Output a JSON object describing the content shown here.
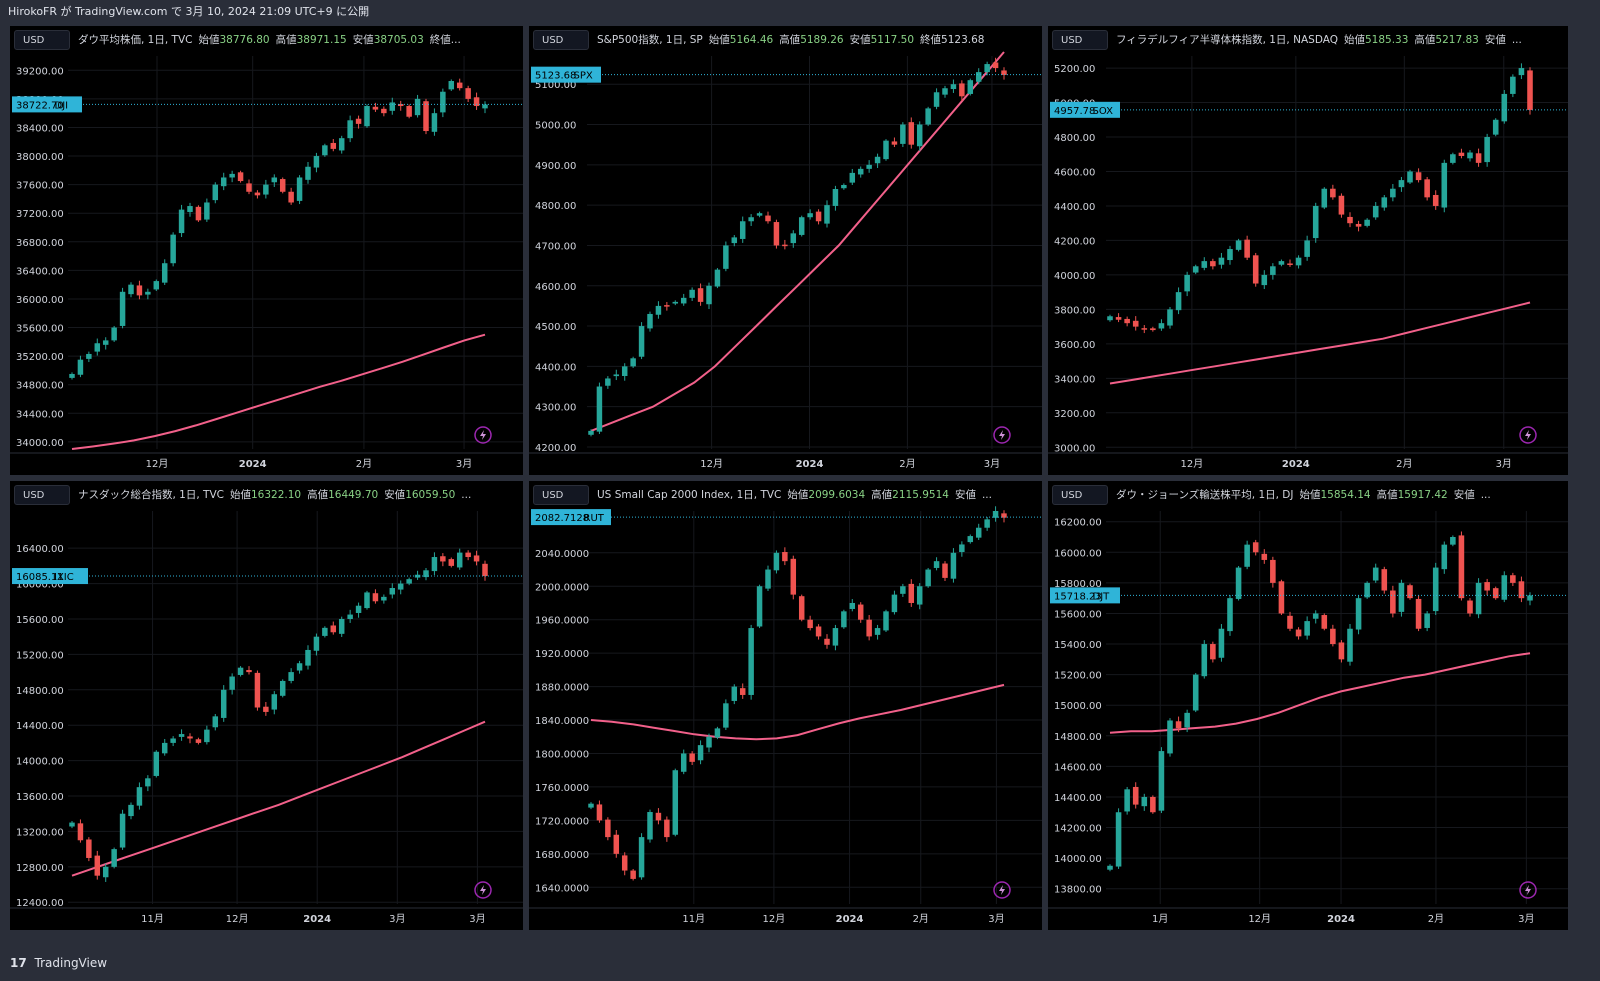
{
  "header": {
    "text": "HirokoFR が TradingView.com で 3月 10, 2024 21:09 UTC+9 に公開"
  },
  "footer": {
    "logo": "17",
    "brand": "TradingView"
  },
  "colors": {
    "up": "#26a69a",
    "down": "#ef5350",
    "ma": "#f2608a",
    "tag": "#2fb4d8",
    "bg": "#000000",
    "frame": "#2a2e39"
  },
  "panels": [
    {
      "currency": "USD",
      "legend": {
        "name": "ダウ平均株価, 1日, TVC",
        "o_label": "始値",
        "o": "38776.80",
        "h_label": "高値",
        "h": "38971.15",
        "l_label": "安値",
        "l": "38705.03",
        "tail": "終値..."
      },
      "last": {
        "value": "38722.70",
        "symbol": "DJI"
      },
      "chart_data": {
        "type": "candlestick",
        "ylim": [
          33900,
          39400
        ],
        "y_ticks": [
          "39200.00",
          "38800.00",
          "38400.00",
          "38000.00",
          "37600.00",
          "37200.00",
          "36800.00",
          "36400.00",
          "36000.00",
          "35600.00",
          "35200.00",
          "34800.00",
          "34400.00",
          "34000.00"
        ],
        "x_ticks": [
          {
            "label": "12月",
            "pos": 0.2
          },
          {
            "label": "2024",
            "pos": 0.415,
            "major": true
          },
          {
            "label": "2月",
            "pos": 0.665
          },
          {
            "label": "3月",
            "pos": 0.89
          }
        ],
        "closes": [
          34950,
          35150,
          35230,
          35380,
          35420,
          35600,
          36100,
          36200,
          36050,
          36100,
          36250,
          36500,
          36900,
          37250,
          37300,
          37100,
          37350,
          37600,
          37700,
          37750,
          37650,
          37500,
          37450,
          37600,
          37700,
          37500,
          37350,
          37700,
          37850,
          38000,
          38150,
          38100,
          38250,
          38500,
          38450,
          38700,
          38650,
          38600,
          38750,
          38700,
          38550,
          38800,
          38350,
          38600,
          38900,
          39050,
          38950,
          38800,
          38700,
          38722
        ],
        "ma": [
          33900,
          33935,
          33975,
          34020,
          34080,
          34150,
          34230,
          34320,
          34410,
          34500,
          34590,
          34680,
          34770,
          34850,
          34940,
          35030,
          35120,
          35220,
          35320,
          35420,
          35500
        ]
      }
    },
    {
      "currency": "USD",
      "legend": {
        "name": "S&P500指数, 1日, SP",
        "o_label": "始値",
        "o": "5164.46",
        "h_label": "高値",
        "h": "5189.26",
        "l_label": "安値",
        "l": "5117.50",
        "tail": "終値5123.68"
      },
      "last": {
        "value": "5123.68",
        "symbol": "SPX"
      },
      "chart_data": {
        "type": "candlestick",
        "ylim": [
          4195,
          5170
        ],
        "y_ticks": [
          "5100.00",
          "5000.00",
          "4900.00",
          "4800.00",
          "4700.00",
          "4600.00",
          "4500.00",
          "4400.00",
          "4300.00",
          "4200.00"
        ],
        "x_ticks": [
          {
            "label": "12月",
            "pos": 0.28
          },
          {
            "label": "2024",
            "pos": 0.5,
            "major": true
          },
          {
            "label": "2月",
            "pos": 0.72
          },
          {
            "label": "3月",
            "pos": 0.91
          }
        ],
        "closes": [
          4240,
          4350,
          4370,
          4380,
          4400,
          4420,
          4500,
          4530,
          4550,
          4550,
          4560,
          4570,
          4590,
          4560,
          4600,
          4640,
          4700,
          4720,
          4760,
          4770,
          4780,
          4760,
          4700,
          4700,
          4730,
          4770,
          4780,
          4760,
          4800,
          4840,
          4850,
          4880,
          4890,
          4900,
          4920,
          4960,
          4950,
          5000,
          4950,
          5000,
          5040,
          5080,
          5090,
          5100,
          5070,
          5110,
          5130,
          5150,
          5140,
          5123
        ],
        "ma": [
          4240,
          4260,
          4280,
          4300,
          4330,
          4360,
          4400,
          4450,
          4500,
          4550,
          4600,
          4650,
          4700,
          4760,
          4820,
          4880,
          4940,
          5000,
          5060,
          5120,
          5180
        ]
      }
    },
    {
      "currency": "USD",
      "legend": {
        "name": "フィラデルフィア半導体株指数, 1日, NASDAQ",
        "o_label": "始値",
        "o": "5185.33",
        "h_label": "高値",
        "h": "5217.83",
        "l_label": "安値",
        "tail": "..."
      },
      "last": {
        "value": "4957.78",
        "symbol": "SOX"
      },
      "chart_data": {
        "type": "candlestick",
        "ylim": [
          2990,
          5270
        ],
        "y_ticks": [
          "5200.00",
          "5000.00",
          "4800.00",
          "4600.00",
          "4400.00",
          "4200.00",
          "4000.00",
          "3800.00",
          "3600.00",
          "3400.00",
          "3200.00",
          "3000.00"
        ],
        "x_ticks": [
          {
            "label": "12月",
            "pos": 0.19
          },
          {
            "label": "2024",
            "pos": 0.42,
            "major": true
          },
          {
            "label": "2月",
            "pos": 0.66
          },
          {
            "label": "3月",
            "pos": 0.88
          }
        ],
        "closes": [
          3760,
          3740,
          3720,
          3700,
          3690,
          3680,
          3720,
          3800,
          3900,
          4000,
          4050,
          4080,
          4050,
          4100,
          4150,
          4200,
          4100,
          3950,
          4000,
          4050,
          4080,
          4060,
          4100,
          4200,
          4400,
          4500,
          4450,
          4350,
          4300,
          4280,
          4320,
          4400,
          4450,
          4500,
          4550,
          4600,
          4550,
          4450,
          4400,
          4650,
          4700,
          4690,
          4710,
          4650,
          4800,
          4900,
          5050,
          5150,
          5200,
          4957
        ],
        "ma": [
          3370,
          3390,
          3410,
          3430,
          3450,
          3470,
          3490,
          3510,
          3530,
          3550,
          3570,
          3590,
          3610,
          3630,
          3660,
          3690,
          3720,
          3750,
          3780,
          3810,
          3840
        ]
      }
    },
    {
      "currency": "USD",
      "legend": {
        "name": "ナスダック総合指数, 1日, TVC",
        "o_label": "始値",
        "o": "16322.10",
        "h_label": "高値",
        "h": "16449.70",
        "l_label": "安値",
        "l": "16059.50",
        "tail": "..."
      },
      "last": {
        "value": "16085.11",
        "symbol": "IXIC"
      },
      "chart_data": {
        "type": "candlestick",
        "ylim": [
          12380,
          16820
        ],
        "y_ticks": [
          "16400.00",
          "16000.00",
          "15600.00",
          "15200.00",
          "14800.00",
          "14400.00",
          "14000.00",
          "13600.00",
          "13200.00",
          "12800.00",
          "12400.00"
        ],
        "x_ticks": [
          {
            "label": "11月",
            "pos": 0.19
          },
          {
            "label": "12月",
            "pos": 0.38
          },
          {
            "label": "2024",
            "pos": 0.56,
            "major": true
          },
          {
            "label": "3月",
            "pos": 0.74
          },
          {
            "label": "3月",
            "pos": 0.92
          }
        ],
        "closes": [
          13300,
          13100,
          12900,
          12700,
          12800,
          13000,
          13400,
          13500,
          13700,
          13800,
          14100,
          14200,
          14250,
          14300,
          14250,
          14200,
          14350,
          14500,
          14800,
          14950,
          15050,
          15000,
          14600,
          14550,
          14750,
          14900,
          15000,
          15100,
          15250,
          15400,
          15500,
          15450,
          15600,
          15650,
          15750,
          15900,
          15800,
          15850,
          15950,
          16000,
          16050,
          16100,
          16150,
          16300,
          16250,
          16200,
          16350,
          16300,
          16250,
          16085
        ],
        "ma": [
          12700,
          12780,
          12860,
          12940,
          13020,
          13100,
          13180,
          13260,
          13340,
          13420,
          13500,
          13590,
          13680,
          13770,
          13860,
          13950,
          14040,
          14140,
          14240,
          14340,
          14440
        ]
      }
    },
    {
      "currency": "USD",
      "legend": {
        "name": "US Small Cap 2000 Index, 1日, TVC",
        "o_label": "始値",
        "o": "2099.6034",
        "h_label": "高値",
        "h": "2115.9514",
        "l_label": "安値",
        "tail": "..."
      },
      "last": {
        "value": "2082.7128",
        "symbol": "RUT"
      },
      "chart_data": {
        "type": "candlestick",
        "ylim": [
          1620,
          2090
        ],
        "y_ticks": [
          "2040.0000",
          "2000.0000",
          "1960.0000",
          "1920.0000",
          "1880.0000",
          "1840.0000",
          "1800.0000",
          "1760.0000",
          "1720.0000",
          "1680.0000",
          "1640.0000"
        ],
        "x_ticks": [
          {
            "label": "11月",
            "pos": 0.24
          },
          {
            "label": "12月",
            "pos": 0.42
          },
          {
            "label": "2024",
            "pos": 0.59,
            "major": true
          },
          {
            "label": "2月",
            "pos": 0.75
          },
          {
            "label": "3月",
            "pos": 0.92
          }
        ],
        "closes": [
          1740,
          1720,
          1700,
          1680,
          1660,
          1650,
          1700,
          1730,
          1720,
          1700,
          1780,
          1800,
          1790,
          1810,
          1820,
          1830,
          1860,
          1880,
          1870,
          1950,
          2000,
          2020,
          2040,
          2030,
          1990,
          1960,
          1950,
          1940,
          1930,
          1950,
          1970,
          1980,
          1960,
          1940,
          1950,
          1970,
          1990,
          2000,
          1980,
          2000,
          2020,
          2030,
          2010,
          2040,
          2050,
          2060,
          2070,
          2080,
          2090,
          2082
        ],
        "ma": [
          1840,
          1838,
          1835,
          1831,
          1827,
          1823,
          1820,
          1818,
          1817,
          1818,
          1822,
          1829,
          1836,
          1842,
          1847,
          1852,
          1858,
          1864,
          1870,
          1876,
          1882
        ]
      }
    },
    {
      "currency": "USD",
      "legend": {
        "name": "ダウ・ジョーンズ輸送株平均, 1日, DJ",
        "o_label": "始値",
        "o": "15854.14",
        "h_label": "高値",
        "h": "15917.42",
        "l_label": "安値",
        "tail": "..."
      },
      "last": {
        "value": "15718.23",
        "symbol": "DJT"
      },
      "chart_data": {
        "type": "candlestick",
        "ylim": [
          13700,
          16270
        ],
        "y_ticks": [
          "16200.00",
          "16000.00",
          "15800.00",
          "15600.00",
          "15400.00",
          "15200.00",
          "15000.00",
          "14800.00",
          "14600.00",
          "14400.00",
          "14200.00",
          "14000.00",
          "13800.00"
        ],
        "x_ticks": [
          {
            "label": "1月",
            "pos": 0.12
          },
          {
            "label": "12月",
            "pos": 0.34
          },
          {
            "label": "2024",
            "pos": 0.52,
            "major": true
          },
          {
            "label": "2月",
            "pos": 0.73
          },
          {
            "label": "3月",
            "pos": 0.93
          }
        ],
        "closes": [
          13950,
          14300,
          14450,
          14350,
          14400,
          14300,
          14700,
          14900,
          14850,
          14950,
          15200,
          15400,
          15300,
          15500,
          15700,
          15900,
          16050,
          16000,
          15950,
          15800,
          15600,
          15500,
          15450,
          15550,
          15600,
          15500,
          15400,
          15300,
          15500,
          15700,
          15800,
          15900,
          15750,
          15600,
          15800,
          15700,
          15500,
          15600,
          15900,
          16050,
          16100,
          15700,
          15600,
          15800,
          15750,
          15700,
          15850,
          15800,
          15700,
          15718
        ],
        "ma": [
          14820,
          14830,
          14830,
          14840,
          14850,
          14860,
          14880,
          14910,
          14950,
          15000,
          15050,
          15090,
          15120,
          15150,
          15180,
          15200,
          15230,
          15260,
          15290,
          15320,
          15340
        ]
      }
    }
  ]
}
